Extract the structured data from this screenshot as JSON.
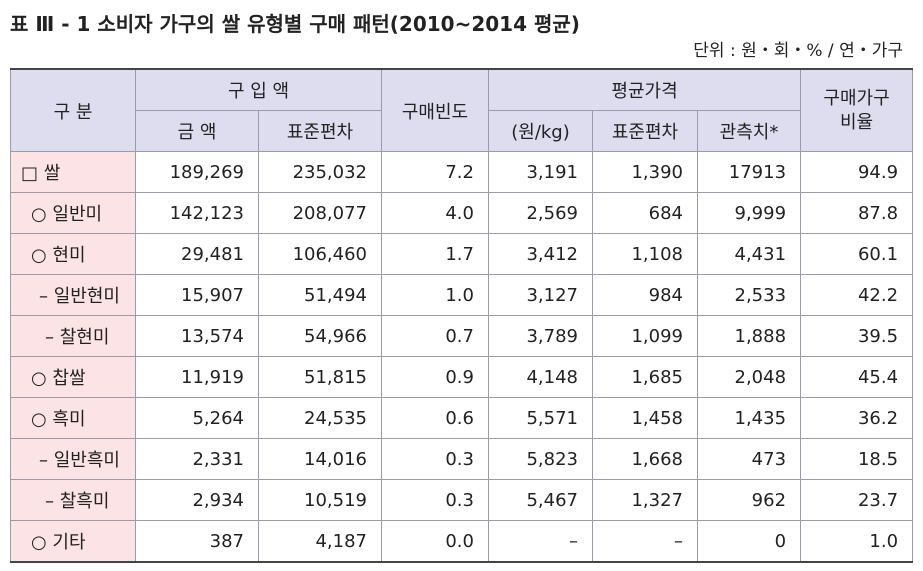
{
  "header": {
    "title": "표 Ⅲ - 1 소비자 가구의 쌀 유형별 구매 패턴(2010~2014 평균)",
    "unit": "단위 : 원・회・% / 연・가구"
  },
  "table": {
    "header": {
      "category": "구 분",
      "purchase_amount": "구 입 액",
      "frequency": "구매빈도",
      "avg_price": "평균가격",
      "ratio": [
        "구매가구",
        "비율"
      ],
      "sub": [
        "금 액",
        "표준편차",
        "(원/kg)",
        "표준편차",
        "관측치*"
      ]
    },
    "rows": [
      [
        "□ 쌀",
        "189,269",
        "235,032",
        "7.2",
        "3,191",
        "1,390",
        "17913",
        "94.9"
      ],
      [
        "○ 일반미",
        "142,123",
        "208,077",
        "4.0",
        "2,569",
        "684",
        "9,999",
        "87.8"
      ],
      [
        "○ 현미",
        "29,481",
        "106,460",
        "1.7",
        "3,412",
        "1,108",
        "4,431",
        "60.1"
      ],
      [
        "– 일반현미",
        "15,907",
        "51,494",
        "1.0",
        "3,127",
        "984",
        "2,533",
        "42.2"
      ],
      [
        "– 찰현미",
        "13,574",
        "54,966",
        "0.7",
        "3,789",
        "1,099",
        "1,888",
        "39.5"
      ],
      [
        "○ 찹쌀",
        "11,919",
        "51,815",
        "0.9",
        "4,148",
        "1,685",
        "2,048",
        "45.4"
      ],
      [
        "○ 흑미",
        "5,264",
        "24,535",
        "0.6",
        "5,571",
        "1,458",
        "1,435",
        "36.2"
      ],
      [
        "– 일반흑미",
        "2,331",
        "14,016",
        "0.3",
        "5,823",
        "1,668",
        "473",
        "18.5"
      ],
      [
        "– 찰흑미",
        "2,934",
        "10,519",
        "0.3",
        "5,467",
        "1,327",
        "962",
        "23.7"
      ],
      [
        "○ 기타",
        "387",
        "4,187",
        "0.0",
        "–",
        "–",
        "0",
        "1.0"
      ]
    ]
  }
}
